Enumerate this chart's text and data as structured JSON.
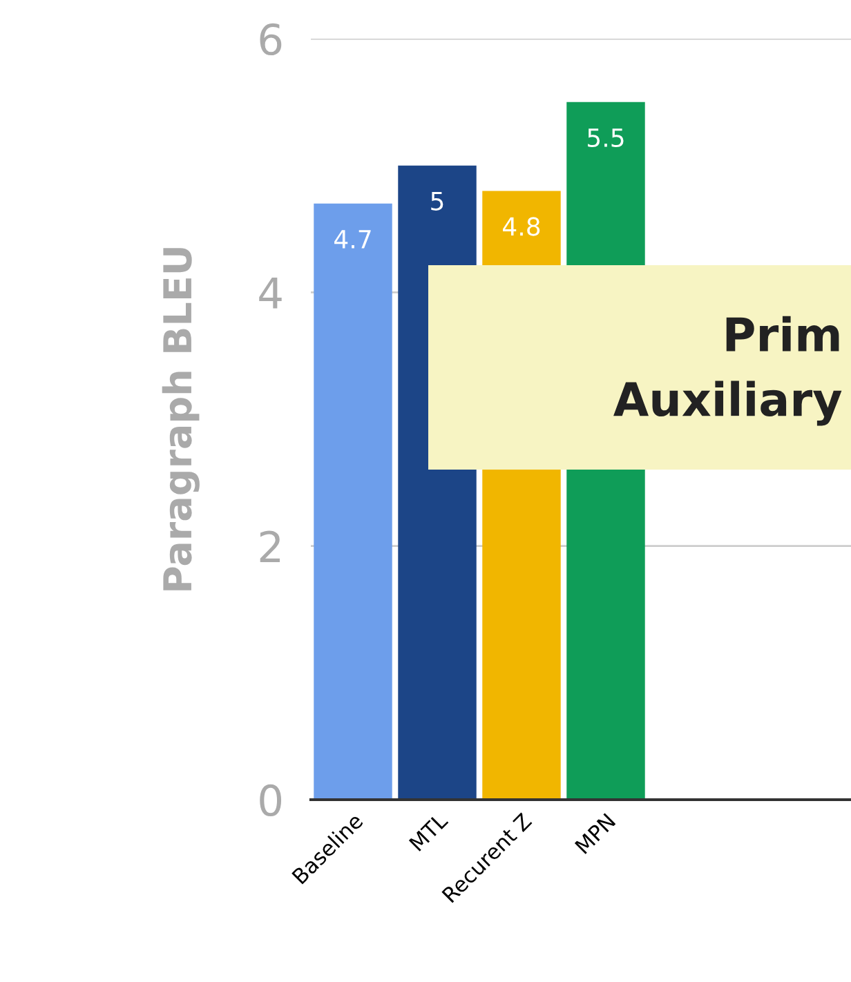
{
  "chart_data": {
    "type": "bar",
    "ylabel": "Paragraph BLEU",
    "categories": [
      "Baseline",
      "MTL",
      "Recurent Z",
      "MPN"
    ],
    "values": [
      4.7,
      5,
      4.8,
      5.5
    ],
    "colors": [
      "#6d9eeb",
      "#1c4587",
      "#f1b600",
      "#0f9d58"
    ],
    "ylim": [
      0,
      6
    ],
    "yticks": [
      0,
      2,
      4,
      6
    ],
    "grid": "y",
    "data_labels": true,
    "annotations": [
      "Prim",
      "Auxiliary"
    ]
  }
}
